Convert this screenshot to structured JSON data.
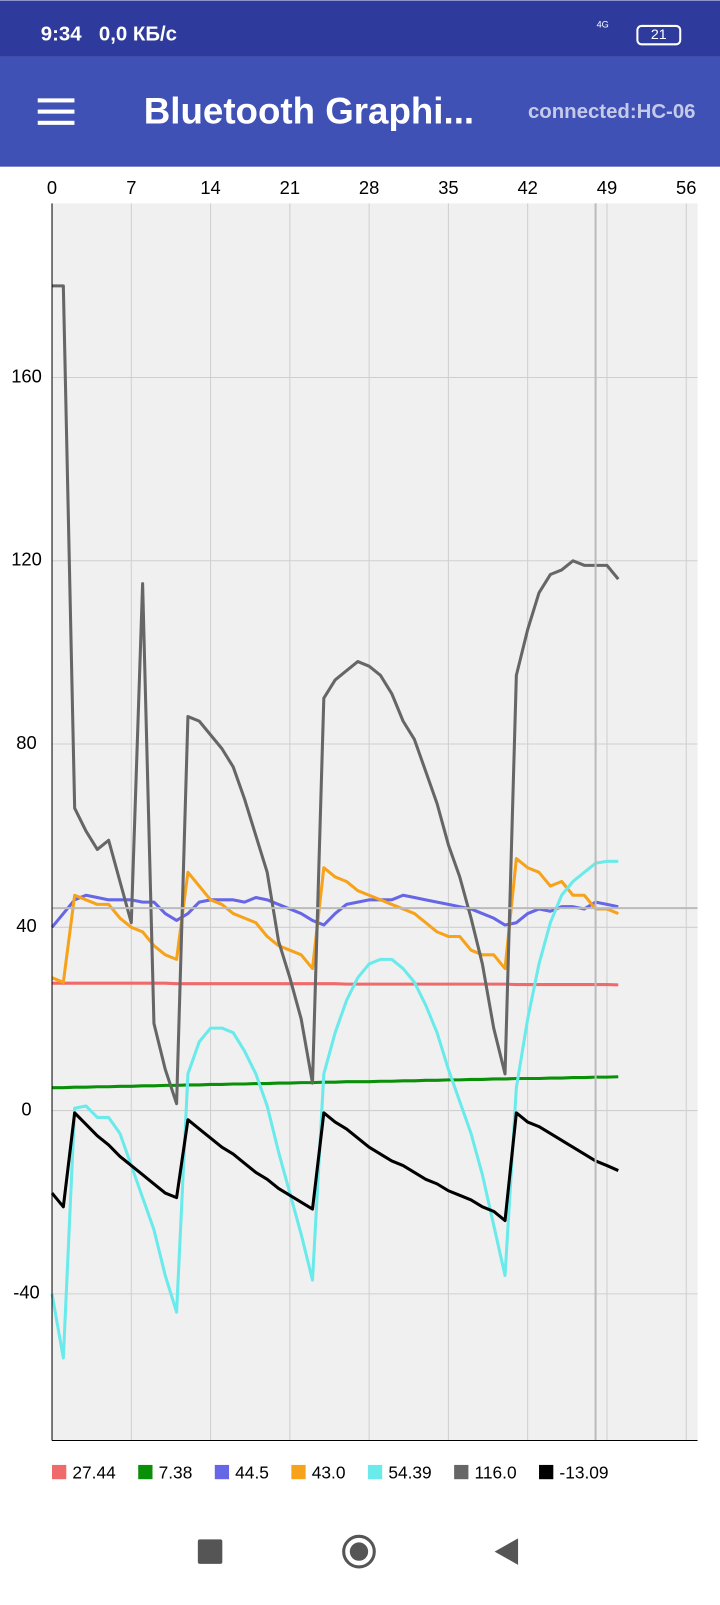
{
  "status_bar": {
    "time": "9:34",
    "speed": "0,0 КБ/с",
    "network": "4G",
    "battery": "21"
  },
  "app_bar": {
    "title": "Bluetooth Graphi...",
    "status": "connected:HC-06"
  },
  "chart_data": {
    "type": "line",
    "x": [
      0,
      1,
      2,
      3,
      4,
      5,
      6,
      7,
      8,
      9,
      10,
      11,
      12,
      13,
      14,
      15,
      16,
      17,
      18,
      19,
      20,
      21,
      22,
      23,
      24,
      25,
      26,
      27,
      28,
      29,
      30,
      31,
      32,
      33,
      34,
      35,
      36,
      37,
      38,
      39,
      40,
      41,
      42,
      43,
      44,
      45,
      46,
      47,
      48,
      49,
      50
    ],
    "xlim": [
      0,
      57
    ],
    "xticks": [
      0,
      7,
      14,
      21,
      28,
      35,
      42,
      49,
      56
    ],
    "ylim": [
      -72,
      198
    ],
    "yticks": [
      -40,
      0,
      40,
      80,
      120,
      160
    ],
    "grid": true,
    "series": [
      {
        "name": "27.44",
        "color": "#ef6b6b",
        "values": [
          27.8,
          27.8,
          27.8,
          27.8,
          27.8,
          27.8,
          27.8,
          27.8,
          27.8,
          27.8,
          27.8,
          27.7,
          27.7,
          27.7,
          27.7,
          27.7,
          27.7,
          27.7,
          27.7,
          27.7,
          27.7,
          27.7,
          27.7,
          27.7,
          27.7,
          27.7,
          27.6,
          27.6,
          27.6,
          27.6,
          27.6,
          27.6,
          27.6,
          27.6,
          27.6,
          27.6,
          27.6,
          27.6,
          27.6,
          27.6,
          27.6,
          27.5,
          27.5,
          27.5,
          27.5,
          27.5,
          27.5,
          27.5,
          27.5,
          27.5,
          27.44
        ]
      },
      {
        "name": "7.38",
        "color": "#0a8f08",
        "values": [
          5.0,
          5.0,
          5.1,
          5.1,
          5.2,
          5.2,
          5.3,
          5.3,
          5.4,
          5.4,
          5.5,
          5.5,
          5.6,
          5.6,
          5.7,
          5.7,
          5.8,
          5.8,
          5.9,
          5.9,
          6.0,
          6.0,
          6.1,
          6.1,
          6.2,
          6.2,
          6.3,
          6.3,
          6.3,
          6.4,
          6.4,
          6.5,
          6.5,
          6.6,
          6.6,
          6.7,
          6.7,
          6.8,
          6.8,
          6.9,
          6.9,
          7.0,
          7.0,
          7.0,
          7.1,
          7.1,
          7.2,
          7.2,
          7.3,
          7.3,
          7.38
        ]
      },
      {
        "name": "44.5",
        "color": "#6666e6",
        "values": [
          40,
          43,
          46,
          47,
          46.5,
          46,
          46,
          46,
          45.5,
          45.5,
          43,
          41.5,
          43,
          45.5,
          46,
          46,
          46,
          45.5,
          46.5,
          46,
          45,
          44,
          43,
          41.5,
          40.5,
          43,
          45,
          45.5,
          46,
          46,
          46,
          47,
          46.5,
          46,
          45.5,
          45,
          44.5,
          44,
          43,
          42,
          40.5,
          41,
          43,
          44,
          43.5,
          44.5,
          44.5,
          44,
          45.5,
          45,
          44.5
        ]
      },
      {
        "name": "43.0",
        "color": "#f7a21b",
        "values": [
          29,
          28,
          47,
          46,
          45,
          45,
          42,
          40,
          39,
          36,
          34,
          33,
          52,
          49,
          46,
          45,
          43,
          42,
          41,
          38,
          36,
          35,
          34,
          31,
          53,
          51,
          50,
          48,
          47,
          46,
          45,
          44,
          43,
          41,
          39,
          38,
          38,
          35,
          34,
          34,
          31,
          55,
          53,
          52,
          49,
          50,
          47,
          47,
          44,
          44,
          43
        ]
      },
      {
        "name": "54.39",
        "color": "#6aeaea",
        "values": [
          -40,
          -54,
          0.5,
          1,
          -1.5,
          -1.5,
          -5,
          -12,
          -19,
          -26,
          -36,
          -44,
          8,
          15,
          18,
          18,
          17,
          13,
          8,
          1,
          -9,
          -18,
          -27,
          -37,
          8,
          17,
          24,
          29,
          32,
          33,
          33,
          31,
          28,
          23,
          17,
          9,
          2,
          -5,
          -14,
          -25,
          -36,
          5,
          20,
          32,
          41,
          47,
          50,
          52,
          54,
          54.4,
          54.39
        ]
      },
      {
        "name": "116.0",
        "color": "#666666",
        "values": [
          180,
          180,
          66,
          61,
          57,
          59,
          50,
          41,
          115,
          19,
          9,
          1.5,
          86,
          85,
          82,
          79,
          75,
          68,
          60,
          52,
          37,
          29,
          20,
          6,
          90,
          94,
          96,
          98,
          97,
          95,
          91,
          85,
          81,
          74,
          67,
          58,
          51,
          42,
          32,
          18,
          8,
          95,
          105,
          113,
          117,
          118,
          120,
          119,
          119,
          119,
          116
        ]
      },
      {
        "name": "-13.09",
        "color": "#000000",
        "values": [
          -18,
          -21,
          -0.5,
          -3,
          -5.5,
          -7.5,
          -10,
          -12,
          -14,
          -16,
          -18,
          -19,
          -2,
          -4,
          -6,
          -8,
          -9.5,
          -11.5,
          -13.5,
          -15,
          -17,
          -18.5,
          -20,
          -21.5,
          -0.5,
          -2.5,
          -4,
          -6,
          -8,
          -9.5,
          -11,
          -12,
          -13.5,
          -15,
          -16,
          -17.5,
          -18.5,
          -19.5,
          -21,
          -22,
          -24,
          -0.5,
          -2.5,
          -3.5,
          -5,
          -6.5,
          -8,
          -9.5,
          -11,
          -12,
          -13.09
        ]
      }
    ]
  }
}
